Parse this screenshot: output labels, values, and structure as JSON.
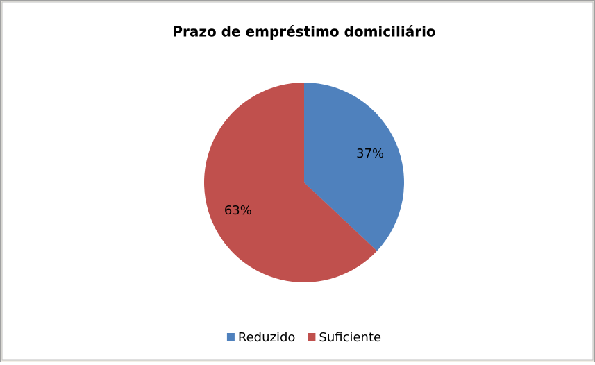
{
  "chart_data": {
    "type": "pie",
    "title": "Prazo de empréstimo domiciliário",
    "categories": [
      "Reduzido",
      "Suficiente"
    ],
    "values": [
      37,
      63
    ],
    "value_labels": [
      "37%",
      "63%"
    ],
    "colors": [
      "#4f81bd",
      "#c0504d"
    ],
    "legend": "bottom"
  }
}
